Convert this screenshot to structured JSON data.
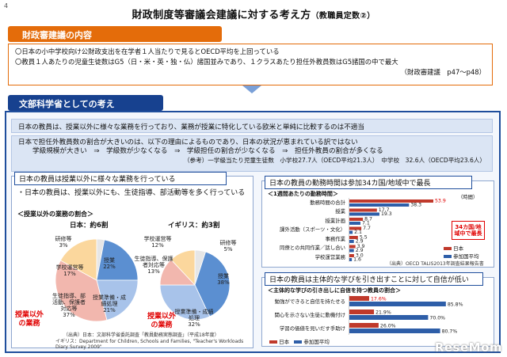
{
  "page": {
    "number": "4",
    "title": "財政制度等審議会建議に対する考え方",
    "title_note": "（教職員定数②）"
  },
  "section1": {
    "header": "財政審建議の内容",
    "lines": [
      "〇日本の小中学校向け公財政支出を在学者１人当たりで見るとOECD平均を上回っている",
      "〇教員１人あたりの児童生徒数はG5（日・米・英・独・仏）諸国並みであり、１クラスあたり担任外教員数はG5諸国の中で最大"
    ],
    "reference": "（財政審建議　p47～p48）"
  },
  "section2": {
    "header": "文部科学省としての考え",
    "band1": "日本の教員は、授業以外に様々な業務を行っており、業務が授業に特化している欧米と単純に比較するのは不適当",
    "band2_line1": "日本で担任外教員数の割合が大きいのは、以下の理由によるものであり、日本の状況が恵まれている訳ではない",
    "band2_line2": "学級規模が大きい　⇒　学級数が少なくなる　⇒　学級担任の割合が少なくなる　⇒　担任外教員の割合が多くなる",
    "band2_note": "（参考）一学級当たり児童生徒数　小学校27.7人（OECD平均21.3人）　中学校　32.6人（OECD平均23.6人）"
  },
  "left_panel": {
    "header": "日本の教員は授業以外に様々な業務を行っている",
    "bullet": "・日本の教員は、授業以外にも、生徒指導、部活動等を多く行っている",
    "pie_caption": "＜授業以外の業務の割合＞",
    "japan": {
      "title": "日本：約6割",
      "slices": [
        {
          "label": "研修等",
          "value": 3,
          "color": "#e6e6e6"
        },
        {
          "label": "授業",
          "value": 22,
          "color": "#5b8fd1"
        },
        {
          "label": "授業準備・成績処理",
          "value": 21,
          "color": "#a8c3ea"
        },
        {
          "label": "生徒指導、部活動、保護者対応等",
          "value": 37,
          "color": "#f2b7ae"
        },
        {
          "label": "学校運営等",
          "value": 17,
          "color": "#fbd79d"
        }
      ],
      "pct_labels": [
        "3%",
        "22%",
        "21%",
        "37%",
        "17%"
      ]
    },
    "uk": {
      "title": "イギリス：約3割",
      "slices": [
        {
          "label": "研修等",
          "value": 5,
          "color": "#e6e6e6"
        },
        {
          "label": "授業",
          "value": 38,
          "color": "#5b8fd1"
        },
        {
          "label": "授業準備・成績処理",
          "value": 32,
          "color": "#a8c3ea"
        },
        {
          "label": "生徒指導、保護者対応等",
          "value": 13,
          "color": "#f2b7ae"
        },
        {
          "label": "学校運営等",
          "value": 12,
          "color": "#fbd79d"
        }
      ],
      "pct_labels": [
        "5%",
        "38%",
        "32%",
        "13%",
        "12%"
      ]
    },
    "outside_label": "授業以外の業務",
    "source1": "（出典）日本：文部科学省委託調査「教員勤務実態調査」（平成18年度）",
    "source2": "イギリス：Department for Children, Schools and Families, \"Teacher's Workloads Diary Survey 2009\""
  },
  "chart_data": [
    {
      "type": "bar",
      "title": "日本の教員の勤務時間は参加34カ国/地域中で最長",
      "subtitle": "＜1週間あたりの勤務時間＞",
      "unit": "（時間）",
      "categories": [
        "勤務時間の合計",
        "授業",
        "授業計画",
        "課外活動（スポーツ・文化）",
        "事務作業",
        "同僚との共同作業／話し合い",
        "学校運営業務"
      ],
      "series": [
        {
          "name": "日本",
          "values": [
            53.9,
            17.7,
            8.7,
            7.7,
            5.5,
            3.9,
            3.0
          ],
          "color": "#c0392b"
        },
        {
          "name": "参加国平均",
          "values": [
            38.3,
            19.3,
            7.1,
            2.1,
            2.9,
            2.9,
            1.6
          ],
          "color": "#2e5ea8"
        }
      ],
      "value_labels": {
        "jp": [
          "53.9",
          "17.7",
          "8.7",
          "7.7",
          "5.5",
          "3.9",
          "3.0"
        ],
        "avg": [
          "38.3",
          "19.3",
          "7.1",
          "2.1",
          "2.9",
          "2.9",
          "1.6"
        ]
      },
      "callout": "34カ国/地域中で最長",
      "xlim": [
        0,
        60
      ],
      "source": "（出典）OECD TALIS2013年調査結果報告書"
    },
    {
      "type": "bar",
      "title": "日本の教員は主体的な学びを引き出すことに対して自信が低い",
      "subtitle": "＜主体的な学びの引き出しに自信を持つ教員の割合＞",
      "categories": [
        "勉強ができると自信を持たせる",
        "関心を示さない生徒に動機付け",
        "学習の価値を見いだす手助け"
      ],
      "series": [
        {
          "name": "日本",
          "values": [
            17.6,
            21.9,
            26.0
          ],
          "color": "#c0392b"
        },
        {
          "name": "参加国平均",
          "values": [
            85.8,
            70.0,
            80.7
          ],
          "color": "#2e5ea8"
        }
      ],
      "value_labels": {
        "jp": [
          "17.6%",
          "21.9%",
          "26.0%"
        ],
        "avg": [
          "85.8%",
          "70.0%",
          "80.7%"
        ]
      },
      "xlim": [
        0,
        100
      ]
    }
  ],
  "legend": {
    "japan": "日本",
    "avg": "参加国平均"
  },
  "logo": "ReseMom"
}
